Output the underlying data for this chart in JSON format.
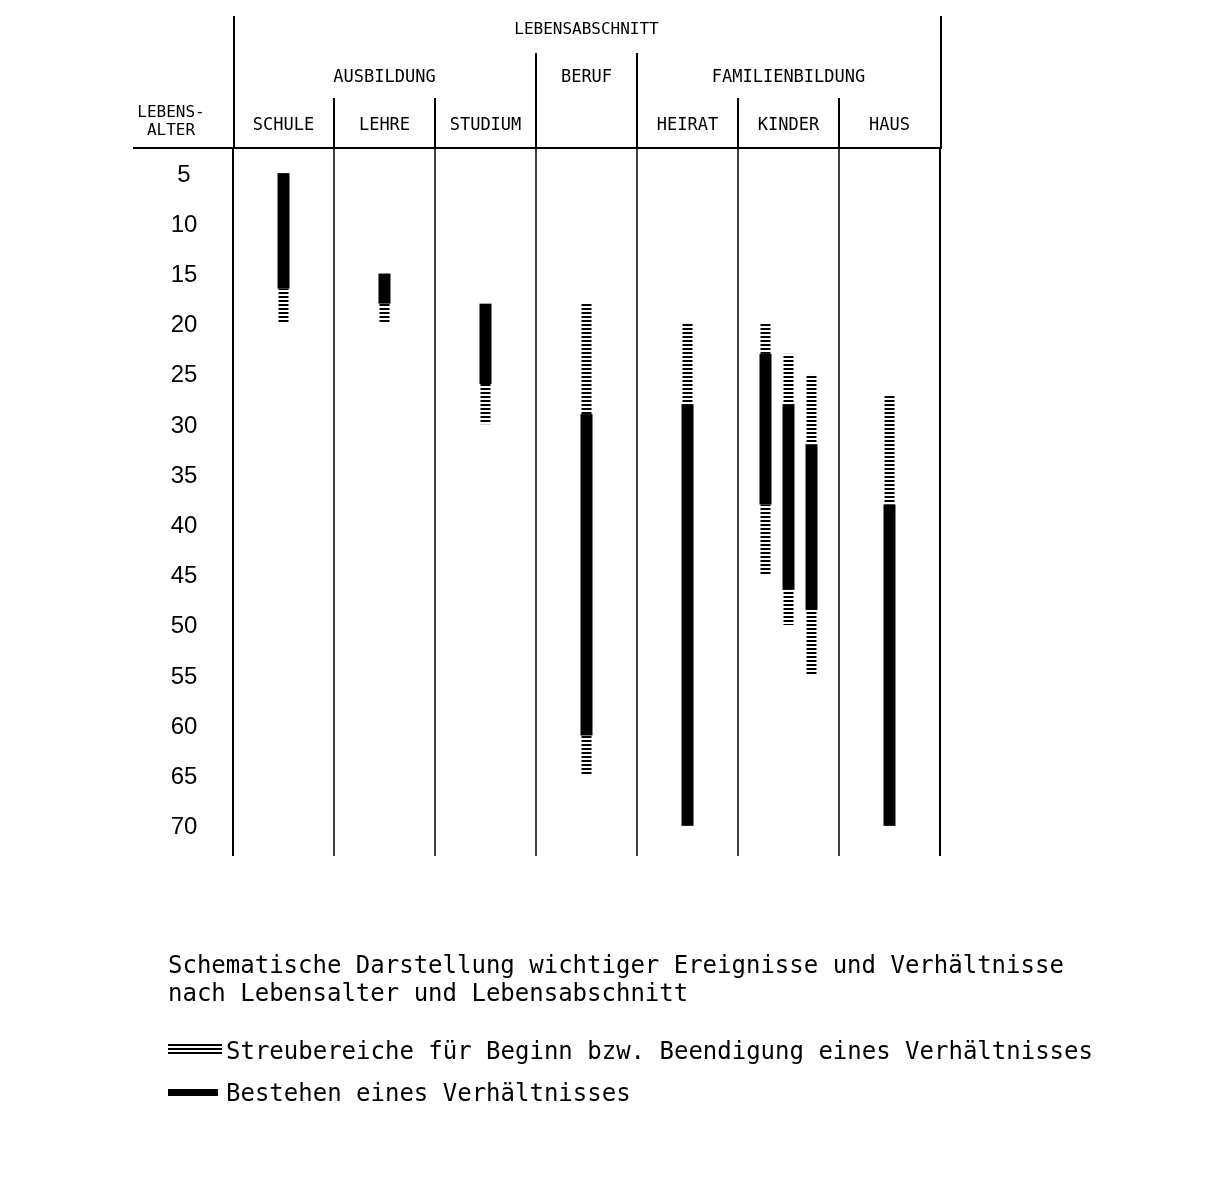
{
  "chart_data": {
    "type": "bar",
    "title": "Schematische Darstellung wichtiger Ereignisse und Verhältnisse nach Lebensalter und Lebensabschnitt",
    "xlabel": "LEBENSABSCHNITT",
    "ylabel": "LEBENS-ALTER",
    "annotations": [
      "AUSBILDUNG",
      "BERUF",
      "FAMILIENBILDUNG"
    ],
    "categories": [
      "SCHULE",
      "LEHRE",
      "STUDIUM",
      null,
      "HEIRAT",
      "KINDER",
      "HAUS"
    ],
    "series": [
      {
        "name": "Streubereiche für Beginn bzw. Beendigung eines Verhältnisses",
        "color": "#000000",
        "line_style": "dashed",
        "base": [
          null,
          null,
          null,
          18,
          20,
          23,
          27
        ],
        "values": [
          null,
          null,
          null,
          11,
          8,
          5,
          11
        ]
      },
      {
        "name": "Bestehen eines Verhältnisses",
        "color": "#000000",
        "line_style": "solid",
        "base": [
          5,
          15,
          18,
          29,
          28,
          28,
          38
        ],
        "values": [
          11.5,
          3,
          8,
          32,
          42,
          18.5,
          32
        ]
      },
      {
        "color": "#000000",
        "line_style": "dashed",
        "base": [
          16.5,
          18,
          26,
          61,
          null,
          46.5,
          null
        ],
        "values": [
          3.5,
          2,
          4,
          4,
          null,
          3.5,
          null
        ]
      },
      {
        "color": "#000000",
        "line_style": "dashed",
        "base": [
          null,
          null,
          null,
          null,
          null,
          20,
          null
        ],
        "values": [
          null,
          null,
          null,
          null,
          null,
          3,
          null
        ]
      },
      {
        "color": "#000000",
        "line_style": "solid",
        "base": [
          null,
          null,
          null,
          null,
          null,
          23,
          null
        ],
        "values": [
          null,
          null,
          null,
          null,
          null,
          15,
          null
        ]
      },
      {
        "color": "#000000",
        "line_style": "dashed",
        "base": [
          null,
          null,
          null,
          null,
          null,
          38,
          null
        ],
        "values": [
          null,
          null,
          null,
          null,
          null,
          7,
          null
        ]
      },
      {
        "color": "#000000",
        "line_style": "dashed",
        "base": [
          null,
          null,
          null,
          null,
          null,
          25,
          null
        ],
        "values": [
          null,
          null,
          null,
          null,
          null,
          7,
          null
        ]
      },
      {
        "color": "#000000",
        "line_style": "solid",
        "base": [
          null,
          null,
          null,
          null,
          null,
          32,
          null
        ],
        "values": [
          null,
          null,
          null,
          null,
          null,
          16.5,
          null
        ]
      },
      {
        "color": "#000000",
        "line_style": "dashed",
        "base": [
          null,
          null,
          null,
          null,
          null,
          48.5,
          null
        ],
        "values": [
          null,
          null,
          null,
          null,
          null,
          6.5,
          null
        ]
      }
    ],
    "ylim": [
      73,
      2.5
    ],
    "yticks": [
      5,
      10,
      15,
      20,
      25,
      30,
      35,
      40,
      45,
      50,
      55,
      60,
      65,
      70
    ],
    "legend": "bottom"
  }
}
